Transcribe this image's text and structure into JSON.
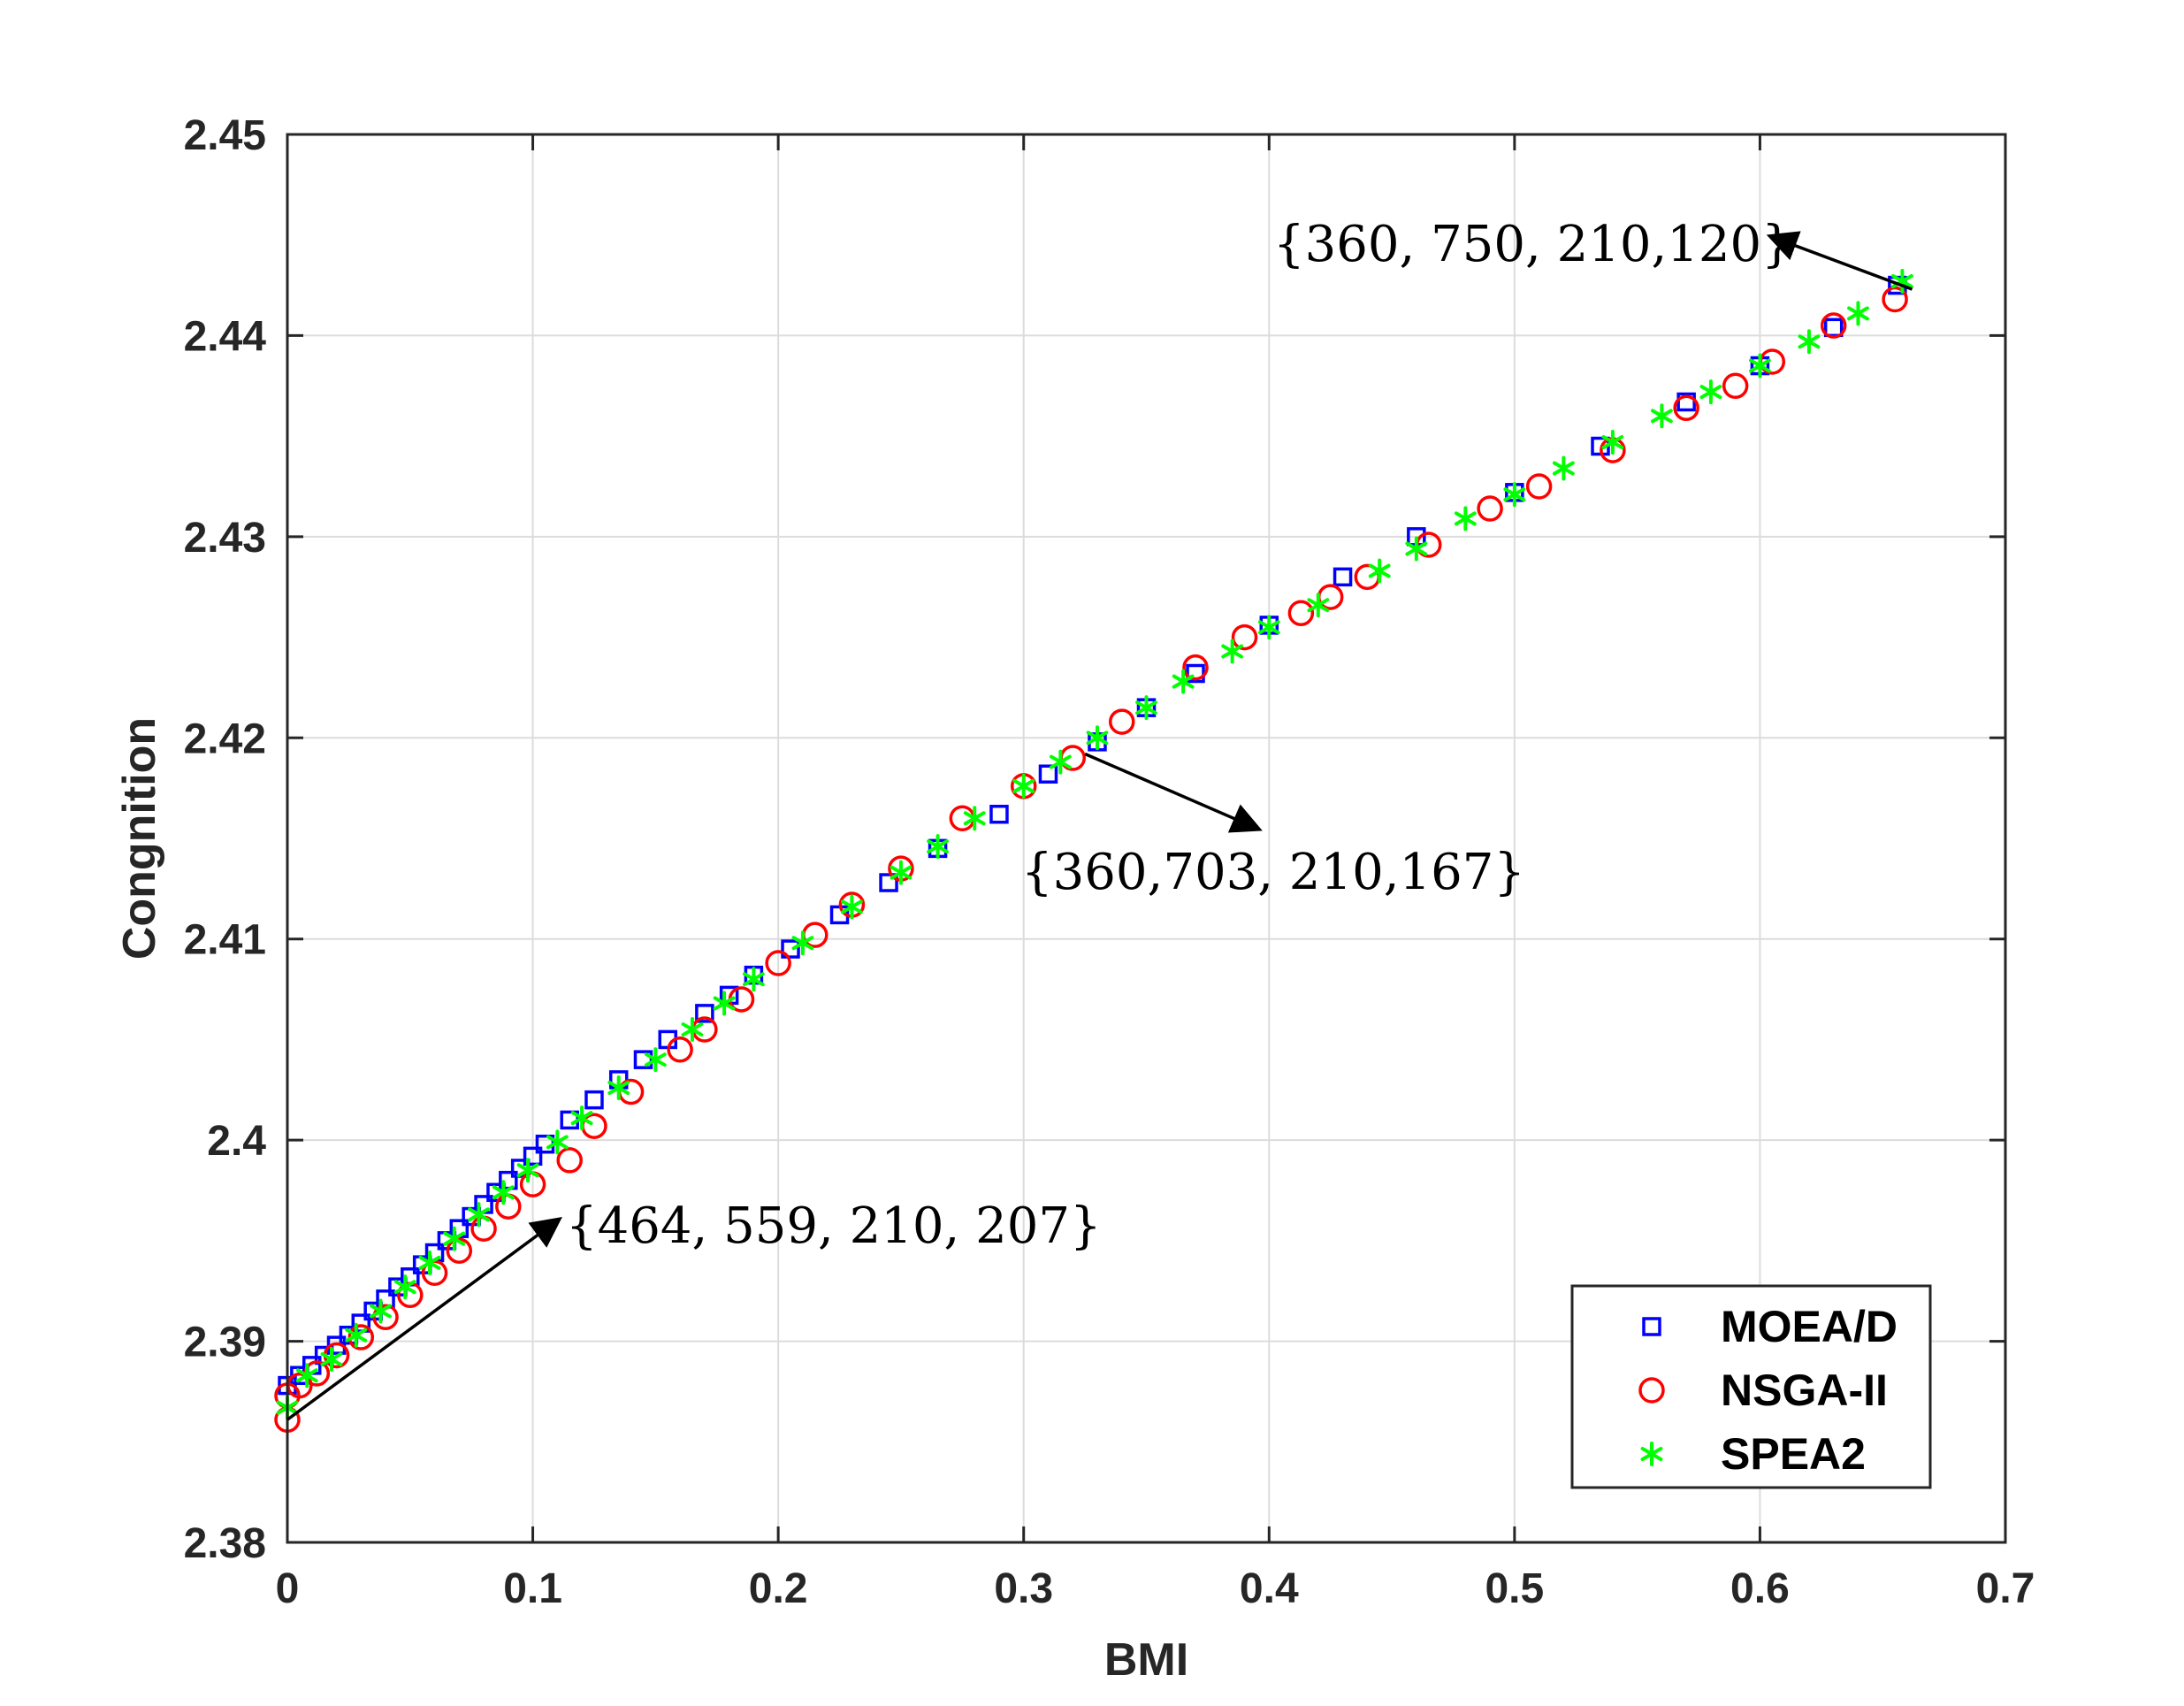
{
  "chart_data": {
    "type": "scatter",
    "xlabel": "BMI",
    "ylabel": "Congnition",
    "xlim": [
      0,
      0.7
    ],
    "ylim": [
      2.38,
      2.45
    ],
    "xticks": [
      "0",
      "0.1",
      "0.2",
      "0.3",
      "0.4",
      "0.5",
      "0.6",
      "0.7"
    ],
    "yticks": [
      "2.38",
      "2.39",
      "2.4",
      "2.41",
      "2.42",
      "2.43",
      "2.44",
      "2.45"
    ],
    "grid": true,
    "legend_position": "bottom-right",
    "series": [
      {
        "name": "MOEA/D",
        "marker": "square",
        "color": "#0000ff",
        "x": [
          0.0,
          0.005,
          0.01,
          0.015,
          0.02,
          0.025,
          0.03,
          0.035,
          0.04,
          0.045,
          0.05,
          0.055,
          0.06,
          0.065,
          0.07,
          0.075,
          0.08,
          0.085,
          0.09,
          0.095,
          0.1,
          0.105,
          0.115,
          0.125,
          0.135,
          0.145,
          0.155,
          0.17,
          0.18,
          0.19,
          0.205,
          0.225,
          0.245,
          0.265,
          0.29,
          0.31,
          0.33,
          0.35,
          0.37,
          0.4,
          0.43,
          0.46,
          0.5,
          0.535,
          0.57,
          0.6,
          0.63,
          0.656
        ],
        "y": [
          2.3878,
          2.3883,
          2.3888,
          2.3893,
          2.3898,
          2.3903,
          2.3909,
          2.3915,
          2.3921,
          2.3927,
          2.3932,
          2.3938,
          2.3944,
          2.395,
          2.3956,
          2.3962,
          2.3968,
          2.3974,
          2.398,
          2.3986,
          2.3992,
          2.3998,
          2.401,
          2.402,
          2.403,
          2.404,
          2.405,
          2.4063,
          2.4072,
          2.4082,
          2.4095,
          2.4112,
          2.4128,
          2.4145,
          2.4162,
          2.4182,
          2.4198,
          2.4215,
          2.4232,
          2.4256,
          2.428,
          2.43,
          2.4322,
          2.4345,
          2.4367,
          2.4385,
          2.4404,
          2.4425
        ]
      },
      {
        "name": "NSGA-II",
        "marker": "circle",
        "color": "#ff0000",
        "x": [
          0.0,
          0.0,
          0.005,
          0.012,
          0.02,
          0.03,
          0.04,
          0.05,
          0.06,
          0.07,
          0.08,
          0.09,
          0.1,
          0.115,
          0.125,
          0.14,
          0.16,
          0.17,
          0.185,
          0.2,
          0.215,
          0.23,
          0.25,
          0.275,
          0.3,
          0.32,
          0.34,
          0.37,
          0.39,
          0.413,
          0.425,
          0.44,
          0.465,
          0.49,
          0.51,
          0.54,
          0.57,
          0.59,
          0.605,
          0.63,
          0.655
        ],
        "y": [
          2.3861,
          2.3873,
          2.3878,
          2.3884,
          2.3893,
          2.3902,
          2.3912,
          2.3923,
          2.3934,
          2.3945,
          2.3956,
          2.3967,
          2.3978,
          2.399,
          2.4007,
          2.4024,
          2.4045,
          2.4055,
          2.407,
          2.4088,
          2.4102,
          2.4117,
          2.4135,
          2.416,
          2.4176,
          2.419,
          2.4208,
          2.4235,
          2.425,
          2.4262,
          2.427,
          2.428,
          2.4296,
          2.4314,
          2.4325,
          2.4343,
          2.4364,
          2.4375,
          2.4387,
          2.4405,
          2.4418
        ]
      },
      {
        "name": "SPEA2",
        "marker": "asterisk",
        "color": "#00ff00",
        "x": [
          0.0,
          0.008,
          0.018,
          0.028,
          0.038,
          0.048,
          0.058,
          0.068,
          0.078,
          0.088,
          0.098,
          0.11,
          0.12,
          0.135,
          0.15,
          0.165,
          0.178,
          0.19,
          0.21,
          0.23,
          0.25,
          0.265,
          0.28,
          0.3,
          0.315,
          0.33,
          0.35,
          0.365,
          0.385,
          0.4,
          0.42,
          0.445,
          0.46,
          0.48,
          0.5,
          0.52,
          0.54,
          0.56,
          0.58,
          0.6,
          0.62,
          0.64,
          0.658
        ],
        "y": [
          2.3867,
          2.3883,
          2.3891,
          2.3903,
          2.3915,
          2.3927,
          2.3939,
          2.3951,
          2.3963,
          2.3974,
          2.3985,
          2.3999,
          2.4011,
          2.4026,
          2.404,
          2.4055,
          2.4068,
          2.408,
          2.4098,
          2.4116,
          2.4133,
          2.4146,
          2.416,
          2.4176,
          2.4188,
          2.42,
          2.4215,
          2.4228,
          2.4243,
          2.4255,
          2.4266,
          2.4283,
          2.4294,
          2.4309,
          2.4321,
          2.4334,
          2.4347,
          2.436,
          2.4372,
          2.4385,
          2.4397,
          2.4411,
          2.4427
        ]
      }
    ],
    "annotations": [
      {
        "text": "{360, 750, 210,120}",
        "arrow_from": [
          0.662,
          2.4423
        ],
        "arrow_to": [
          0.605,
          2.4449
        ]
      },
      {
        "text": "{360,703, 210,167}",
        "arrow_from": [
          0.325,
          2.4192
        ],
        "arrow_to": [
          0.395,
          2.4155
        ]
      },
      {
        "text": "{464, 559, 210, 207}",
        "arrow_from": [
          0.0,
          2.3861
        ],
        "arrow_to": [
          0.11,
          2.396
        ]
      }
    ]
  }
}
